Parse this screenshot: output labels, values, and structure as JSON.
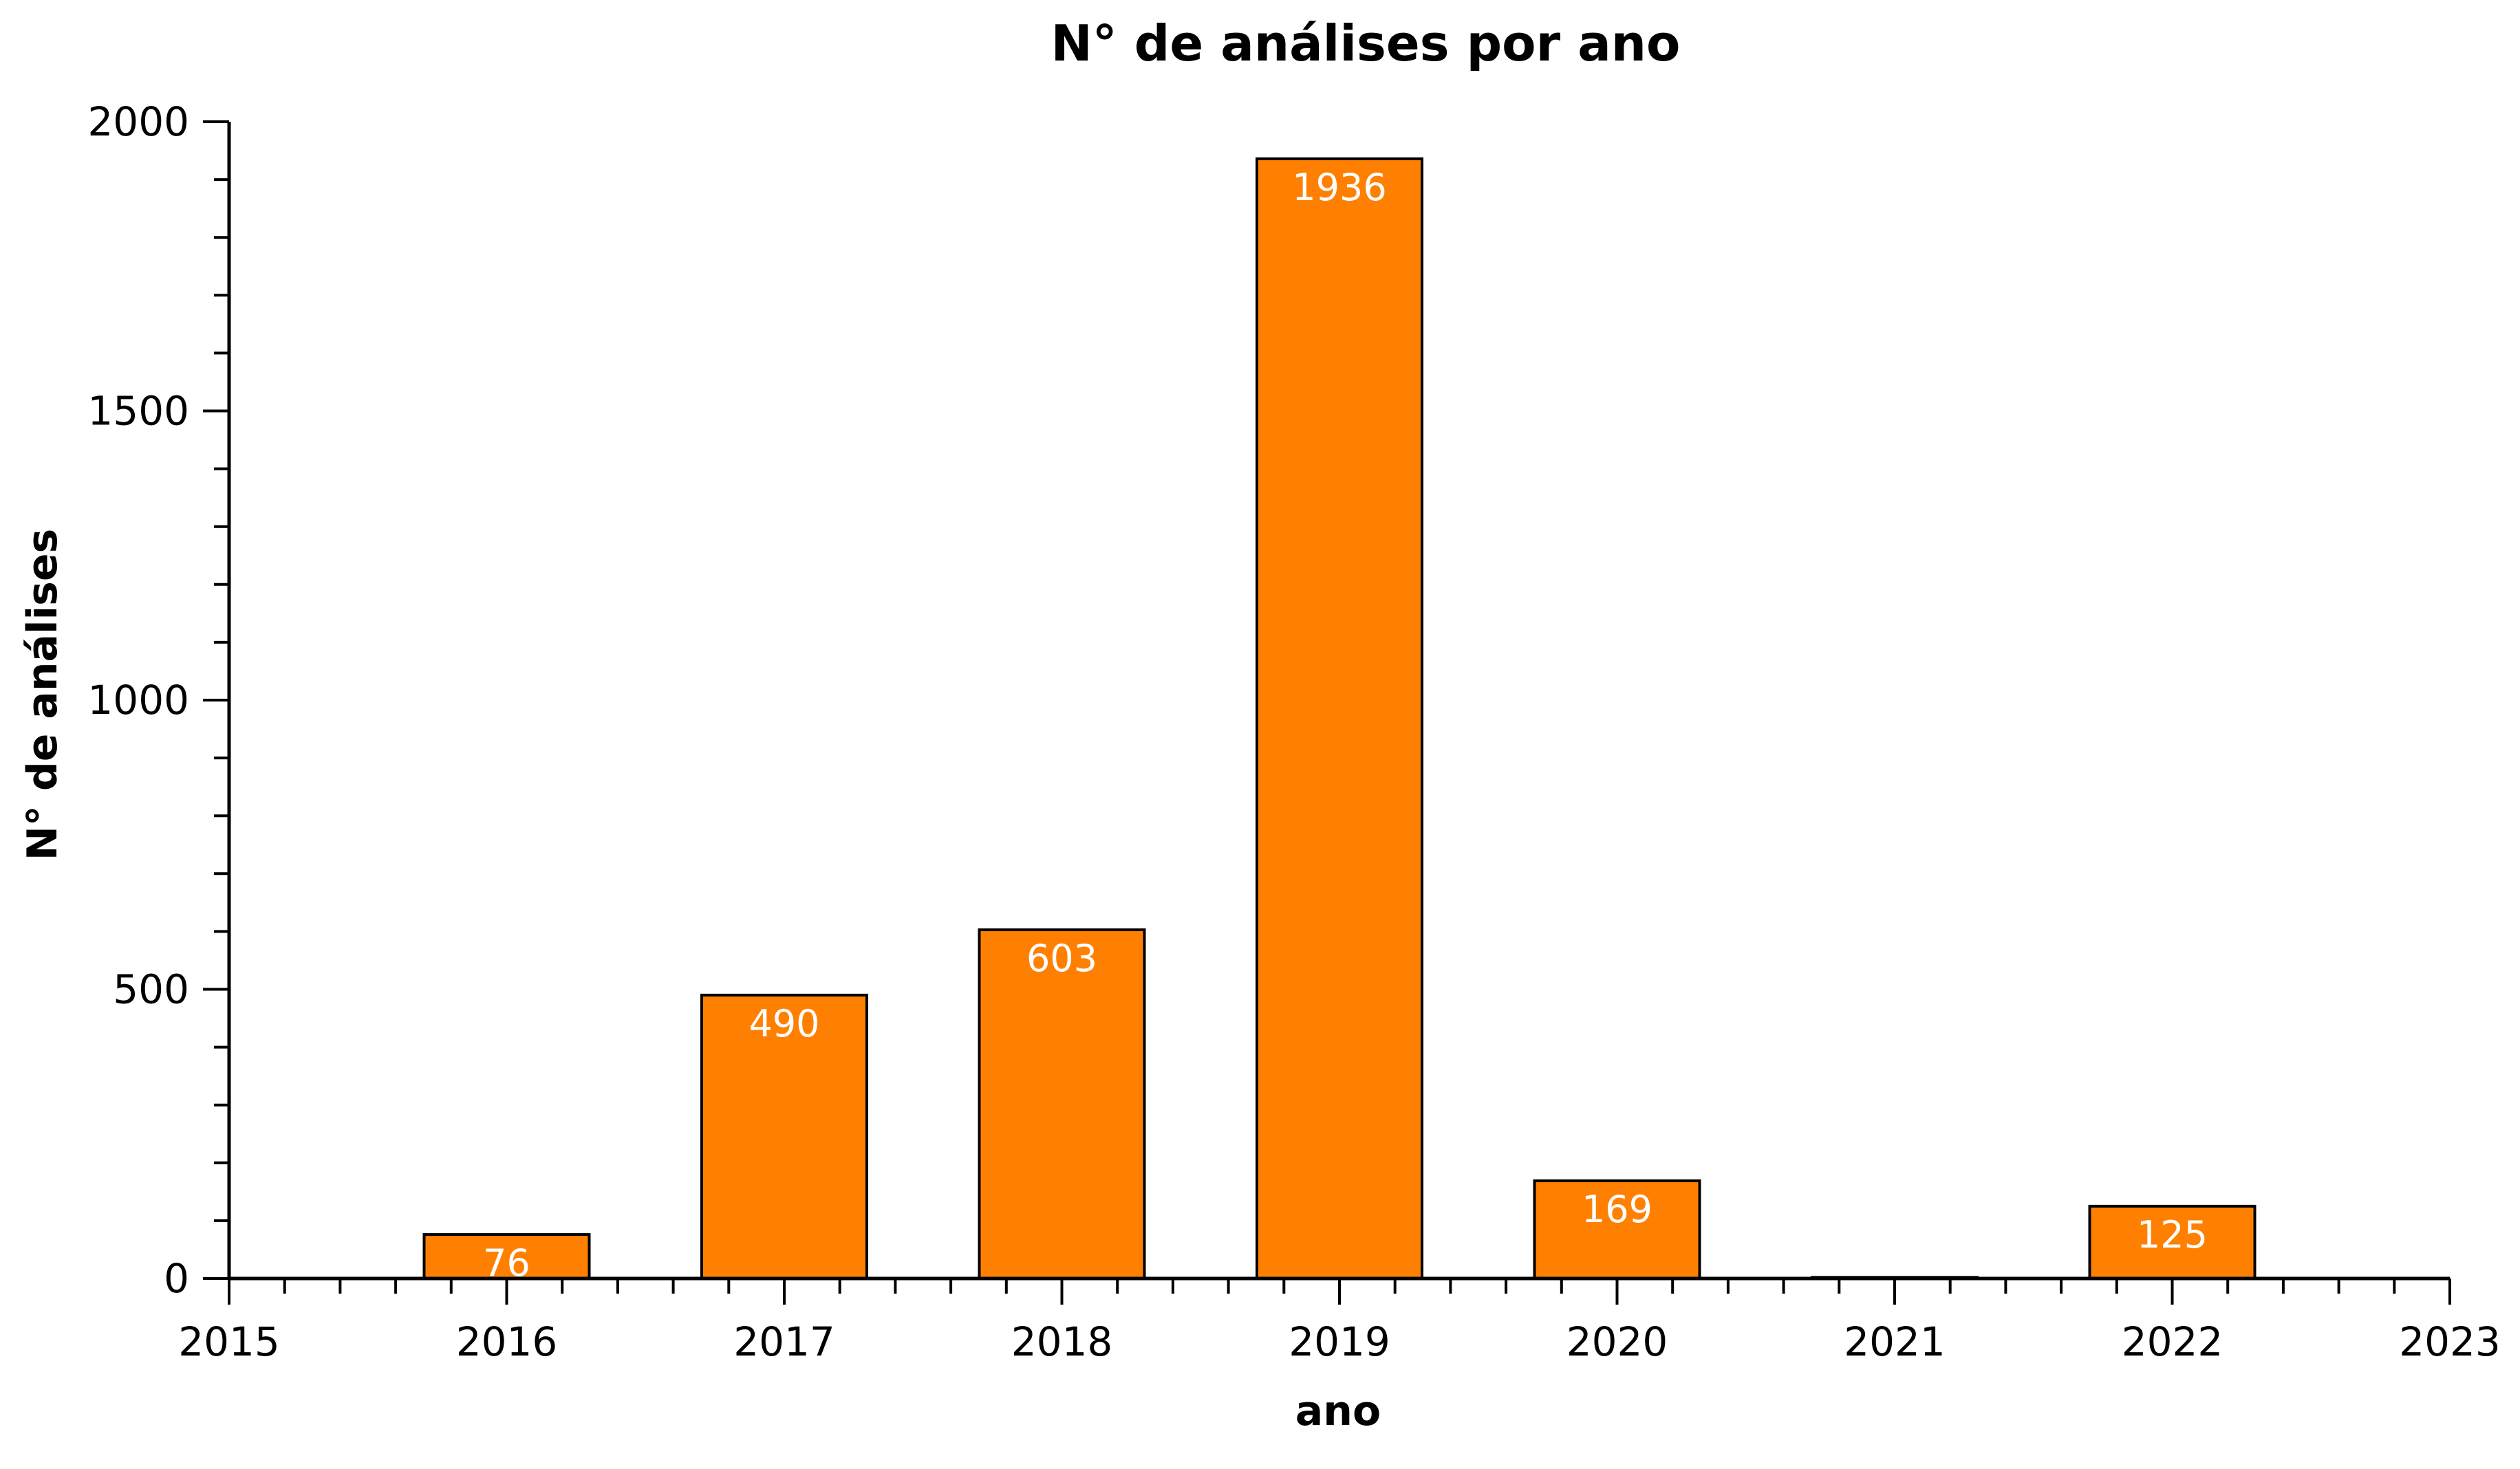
{
  "chart_data": {
    "type": "bar",
    "title": "N° de análises por ano",
    "xlabel": "ano",
    "ylabel": "N° de análises",
    "x": [
      2016,
      2017,
      2018,
      2019,
      2020,
      2021,
      2022
    ],
    "values": [
      76,
      490,
      603,
      1936,
      169,
      2,
      125
    ],
    "value_labels": [
      "76",
      "490",
      "603",
      "1936",
      "169",
      "",
      "125"
    ],
    "xlim": [
      2015,
      2023
    ],
    "ylim": [
      0,
      2000
    ],
    "xticks": [
      "2015",
      "2016",
      "2017",
      "2018",
      "2019",
      "2020",
      "2021",
      "2022",
      "2023"
    ],
    "yticks": [
      "0",
      "500",
      "1000",
      "1500",
      "2000"
    ],
    "grid": false,
    "legend": "none",
    "bar_color": "#ff8000",
    "bar_edge_color": "#000000",
    "value_label_color": "#ffffff"
  }
}
